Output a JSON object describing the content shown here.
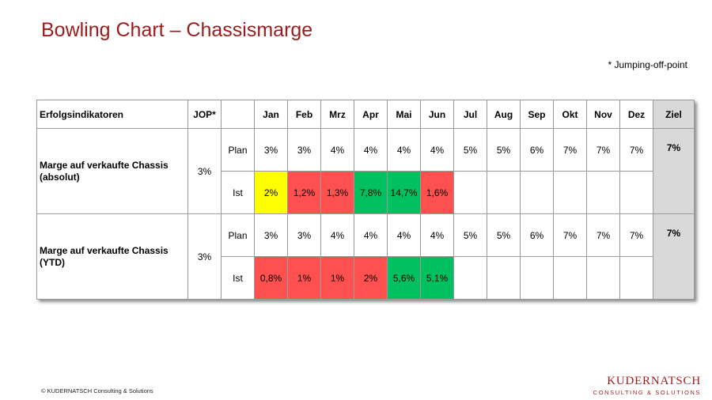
{
  "title": "Bowling Chart – Chassismarge",
  "note": "* Jumping-off-point",
  "table": {
    "header": {
      "indicator": "Erfolgsindikatoren",
      "jop": "JOP*",
      "months": [
        "Jan",
        "Feb",
        "Mrz",
        "Apr",
        "Mai",
        "Jun",
        "Jul",
        "Aug",
        "Sep",
        "Okt",
        "Nov",
        "Dez"
      ],
      "goal": "Ziel"
    },
    "groups": [
      {
        "name": "Marge auf verkaufte Chassis (absolut)",
        "jop": "3%",
        "plan_label": "Plan",
        "plan": [
          "3%",
          "3%",
          "4%",
          "4%",
          "4%",
          "4%",
          "5%",
          "5%",
          "6%",
          "7%",
          "7%",
          "7%"
        ],
        "goal": "7%",
        "ist_label": "Ist",
        "ist": [
          "2%",
          "1,2%",
          "1,3%",
          "7,8%",
          "14,7%",
          "1,6%",
          "",
          "",
          "",
          "",
          "",
          ""
        ],
        "ist_status": [
          "yellow",
          "red",
          "red",
          "green",
          "green",
          "red",
          "",
          "",
          "",
          "",
          "",
          ""
        ]
      },
      {
        "name": "Marge auf verkaufte Chassis (YTD)",
        "jop": "3%",
        "plan_label": "Plan",
        "plan": [
          "3%",
          "3%",
          "4%",
          "4%",
          "4%",
          "4%",
          "5%",
          "5%",
          "6%",
          "7%",
          "7%",
          "7%"
        ],
        "goal": "7%",
        "ist_label": "Ist",
        "ist": [
          "0,8%",
          "1%",
          "1%",
          "2%",
          "5,6%",
          "5,1%",
          "",
          "",
          "",
          "",
          "",
          ""
        ],
        "ist_status": [
          "red",
          "red",
          "red",
          "red",
          "green",
          "green",
          "",
          "",
          "",
          "",
          "",
          ""
        ]
      }
    ],
    "status_colors": {
      "yellow": "#ffff00",
      "red": "#ff5050",
      "green": "#00c060"
    }
  },
  "footer": "© KUDERNATSCH Consulting & Solutions",
  "logo": {
    "main": "KUDERNATSCH",
    "sub": "CONSULTING & SOLUTIONS"
  },
  "colors": {
    "title": "#9b1c1c",
    "goal_background": "#d9d9d9"
  }
}
